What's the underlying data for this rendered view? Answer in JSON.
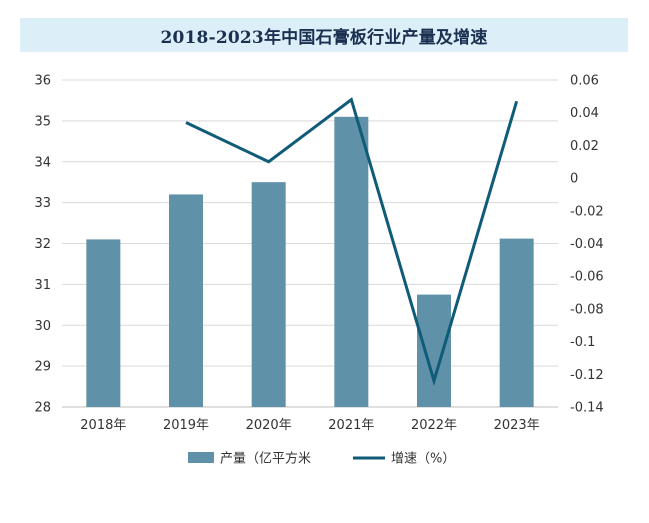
{
  "chart_data": {
    "type": "bar",
    "title": "2018-2023年中国石膏板行业产量及增速",
    "categories": [
      "2018年",
      "2019年",
      "2020年",
      "2021年",
      "2022年",
      "2023年"
    ],
    "series": [
      {
        "name": "产量（亿平方米",
        "type": "bar",
        "axis": "left",
        "values": [
          32.1,
          33.2,
          33.5,
          35.1,
          30.75,
          32.12
        ],
        "color": "#5f91a8"
      },
      {
        "name": "增速（%）",
        "type": "line",
        "axis": "right",
        "values": [
          null,
          0.034,
          0.01,
          0.048,
          -0.124,
          0.047
        ],
        "color": "#0f5b78"
      }
    ],
    "y_left": {
      "min": 28,
      "max": 36,
      "ticks": [
        "36",
        "35",
        "34",
        "33",
        "32",
        "31",
        "30",
        "29",
        "28"
      ]
    },
    "y_right": {
      "min": -0.14,
      "max": 0.06,
      "ticks": [
        "0.06",
        "0.04",
        "0.02",
        "0",
        "-0.02",
        "-0.04",
        "-0.06",
        "-0.08",
        "-0.1",
        "-0.12",
        "-0.14"
      ]
    },
    "grid": true,
    "legend_position": "bottom-center"
  }
}
